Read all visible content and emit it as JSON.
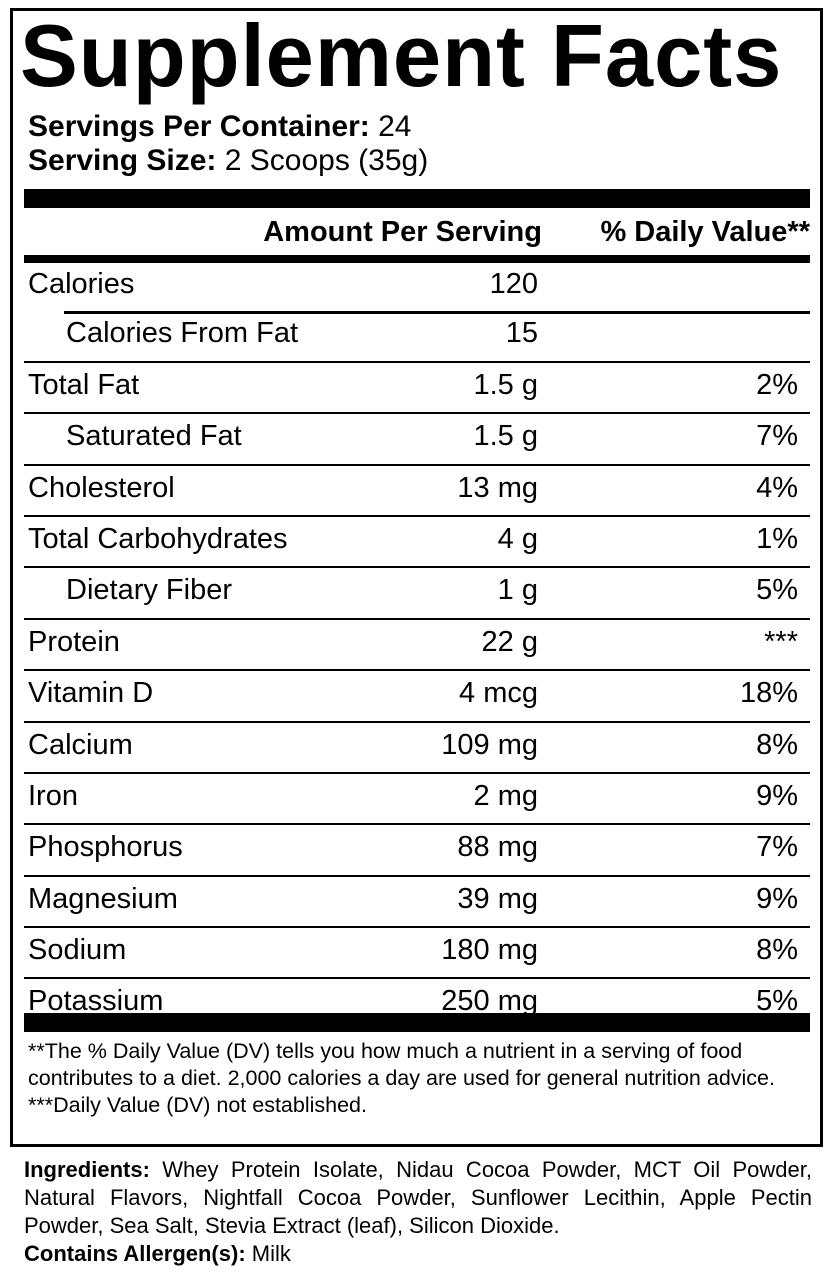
{
  "title": "Supplement Facts",
  "servings": {
    "per_container_label": "Servings Per Container:",
    "per_container_value": "24",
    "size_label": "Serving Size:",
    "size_value": "2 Scoops (35g)"
  },
  "table": {
    "headers": {
      "amount": "Amount Per Serving",
      "dv": "% Daily Value**"
    },
    "rows": [
      {
        "name": "Calories",
        "amount": "120",
        "dv": ""
      },
      {
        "name": "Calories From Fat",
        "amount": "15",
        "dv": ""
      },
      {
        "name": "Total Fat",
        "amount": "1.5 g",
        "dv": "2%"
      },
      {
        "name": "Saturated Fat",
        "amount": "1.5 g",
        "dv": "7%"
      },
      {
        "name": "Cholesterol",
        "amount": "13 mg",
        "dv": "4%"
      },
      {
        "name": "Total Carbohydrates",
        "amount": "4 g",
        "dv": "1%"
      },
      {
        "name": "Dietary Fiber",
        "amount": "1 g",
        "dv": "5%"
      },
      {
        "name": "Protein",
        "amount": "22 g",
        "dv": "***"
      },
      {
        "name": "Vitamin D",
        "amount": "4 mcg",
        "dv": "18%"
      },
      {
        "name": "Calcium",
        "amount": "109 mg",
        "dv": "8%"
      },
      {
        "name": "Iron",
        "amount": "2 mg",
        "dv": "9%"
      },
      {
        "name": "Phosphorus",
        "amount": "88 mg",
        "dv": "7%"
      },
      {
        "name": "Magnesium",
        "amount": "39 mg",
        "dv": "9%"
      },
      {
        "name": "Sodium",
        "amount": "180 mg",
        "dv": "8%"
      },
      {
        "name": "Potassium",
        "amount": "250 mg",
        "dv": "5%"
      }
    ]
  },
  "footnotes": {
    "dv_note": "**The % Daily Value (DV) tells you how much a nutrient in a serving of food contributes to a diet. 2,000 calories a day are used for general nutrition advice.",
    "not_established": "***Daily Value (DV) not established."
  },
  "ingredients": {
    "label": "Ingredients:",
    "text": "Whey Protein Isolate, Nidau Cocoa Powder, MCT Oil Powder, Natural Flavors, Nightfall Cocoa Powder, Sunflower Lecithin, Apple Pectin Powder, Sea Salt, Stevia Extract (leaf), Silicon Dioxide.",
    "allergen_label": "Contains Allergen(s):",
    "allergen_value": "Milk"
  }
}
